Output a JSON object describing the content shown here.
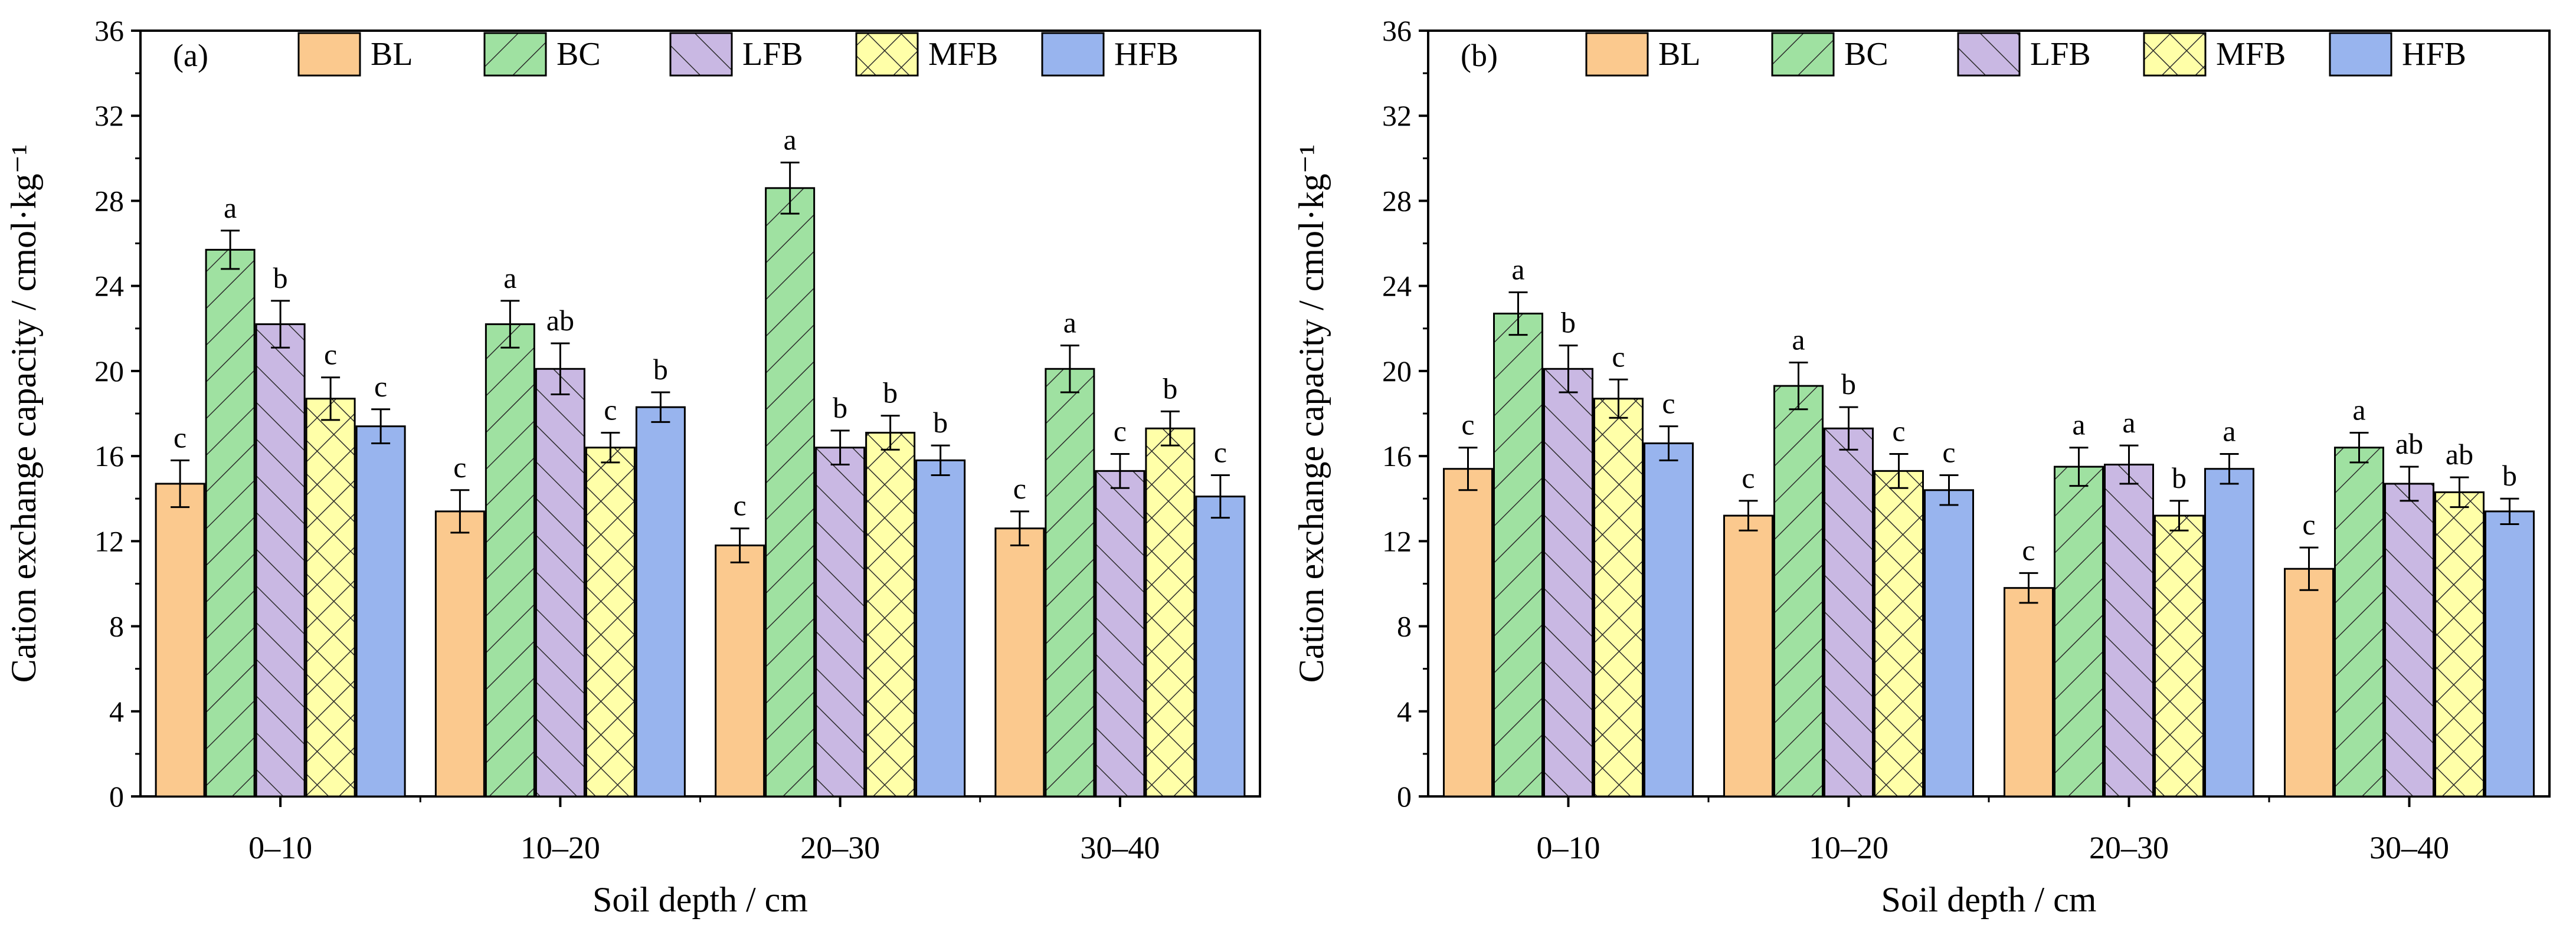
{
  "colors": {
    "BL": "#FBC98E",
    "BC": "#9FE1A1",
    "LFB": "#C9B8E3",
    "MFB": "#FFFFA8",
    "HFB": "#98B4EE"
  },
  "patterns": {
    "BL": "none",
    "BC": "diagonal-forward",
    "LFB": "diagonal-back",
    "MFB": "crosshatch",
    "HFB": "none"
  },
  "chart_data": [
    {
      "type": "bar",
      "panel_label": "(a)",
      "categories": [
        "0–10",
        "10–20",
        "20–30",
        "30–40"
      ],
      "xlabel": "Soil depth / cm",
      "ylabel": "Cation exchange capacity / cmol·kg⁻¹",
      "ylim": [
        0,
        36
      ],
      "yticks": [
        "0",
        "4",
        "8",
        "12",
        "16",
        "20",
        "24",
        "28",
        "32",
        "36"
      ],
      "legend": [
        "BL",
        "BC",
        "LFB",
        "MFB",
        "HFB"
      ],
      "legend_position": "top",
      "series": [
        {
          "name": "BL",
          "values": [
            14.7,
            13.4,
            11.8,
            12.6
          ],
          "errors": [
            1.1,
            1.0,
            0.8,
            0.8
          ],
          "letters": [
            "c",
            "c",
            "c",
            "c"
          ]
        },
        {
          "name": "BC",
          "values": [
            25.7,
            22.2,
            28.6,
            20.1
          ],
          "errors": [
            0.9,
            1.1,
            1.2,
            1.1
          ],
          "letters": [
            "a",
            "a",
            "a",
            "a"
          ]
        },
        {
          "name": "LFB",
          "values": [
            22.2,
            20.1,
            16.4,
            15.3
          ],
          "errors": [
            1.1,
            1.2,
            0.8,
            0.8
          ],
          "letters": [
            "b",
            "ab",
            "b",
            "c"
          ]
        },
        {
          "name": "MFB",
          "values": [
            18.7,
            16.4,
            17.1,
            17.3
          ],
          "errors": [
            1.0,
            0.7,
            0.8,
            0.8
          ],
          "letters": [
            "c",
            "c",
            "b",
            "b"
          ]
        },
        {
          "name": "HFB",
          "values": [
            17.4,
            18.3,
            15.8,
            14.1
          ],
          "errors": [
            0.8,
            0.7,
            0.7,
            1.0
          ],
          "letters": [
            "c",
            "b",
            "b",
            "c"
          ]
        }
      ]
    },
    {
      "type": "bar",
      "panel_label": "(b)",
      "categories": [
        "0–10",
        "10–20",
        "20–30",
        "30–40"
      ],
      "xlabel": "Soil depth / cm",
      "ylabel": "Cation exchange capacity / cmol·kg⁻¹",
      "ylim": [
        0,
        36
      ],
      "yticks": [
        "0",
        "4",
        "8",
        "12",
        "16",
        "20",
        "24",
        "28",
        "32",
        "36"
      ],
      "legend": [
        "BL",
        "BC",
        "LFB",
        "MFB",
        "HFB"
      ],
      "legend_position": "top",
      "series": [
        {
          "name": "BL",
          "values": [
            15.4,
            13.2,
            9.8,
            10.7
          ],
          "errors": [
            1.0,
            0.7,
            0.7,
            1.0
          ],
          "letters": [
            "c",
            "c",
            "c",
            "c"
          ]
        },
        {
          "name": "BC",
          "values": [
            22.7,
            19.3,
            15.5,
            16.4
          ],
          "errors": [
            1.0,
            1.1,
            0.9,
            0.7
          ],
          "letters": [
            "a",
            "a",
            "a",
            "a"
          ]
        },
        {
          "name": "LFB",
          "values": [
            20.1,
            17.3,
            15.6,
            14.7
          ],
          "errors": [
            1.1,
            1.0,
            0.9,
            0.8
          ],
          "letters": [
            "b",
            "b",
            "a",
            "ab"
          ]
        },
        {
          "name": "MFB",
          "values": [
            18.7,
            15.3,
            13.2,
            14.3
          ],
          "errors": [
            0.9,
            0.8,
            0.7,
            0.7
          ],
          "letters": [
            "c",
            "c",
            "b",
            "ab"
          ]
        },
        {
          "name": "HFB",
          "values": [
            16.6,
            14.4,
            15.4,
            13.4
          ],
          "errors": [
            0.8,
            0.7,
            0.7,
            0.6
          ],
          "letters": [
            "c",
            "c",
            "a",
            "b"
          ]
        }
      ]
    }
  ]
}
